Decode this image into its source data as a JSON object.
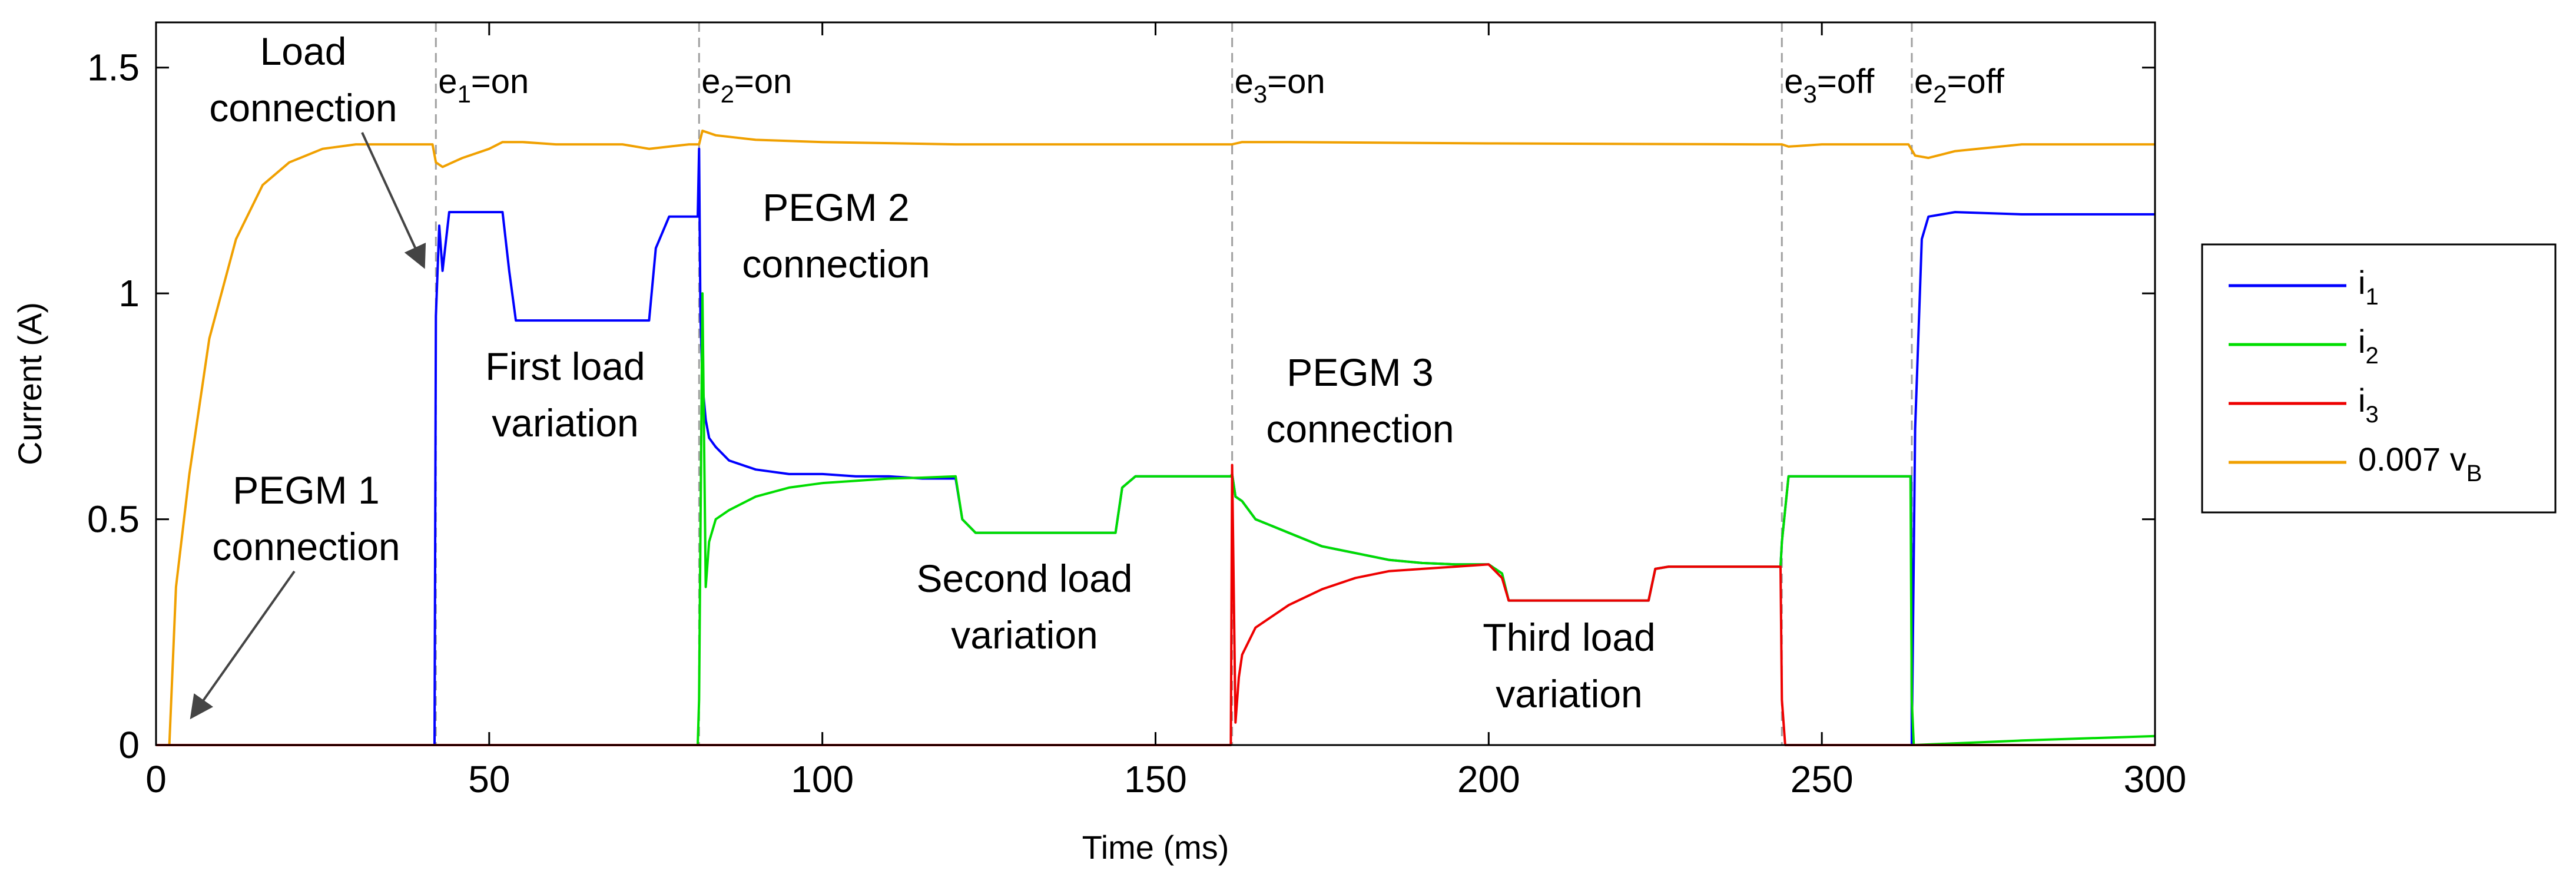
{
  "chart_data": {
    "type": "line",
    "xlabel": "Time (ms)",
    "ylabel": "Current (A)",
    "xlim": [
      0,
      300
    ],
    "ylim": [
      0,
      1.6
    ],
    "xticks": [
      0,
      50,
      100,
      150,
      200,
      250,
      300
    ],
    "xtick_labels": [
      "0",
      "50",
      "100",
      "150",
      "200",
      "250",
      "300"
    ],
    "yticks": [
      0,
      0.5,
      1,
      1.5
    ],
    "ytick_labels": [
      "0",
      "0.5",
      "1",
      "1.5"
    ],
    "legend_position": "outside-right",
    "legend": [
      {
        "main": "i",
        "sub": "1",
        "color": "#0000ff"
      },
      {
        "main": "i",
        "sub": "2",
        "color": "#00dd00"
      },
      {
        "main": "i",
        "sub": "3",
        "color": "#ee0000"
      },
      {
        "main": "0.007 v",
        "sub": "B",
        "color": "#f0a000"
      }
    ],
    "events": [
      {
        "t": 42,
        "pre": "e",
        "sub": "1",
        "post": "=on"
      },
      {
        "t": 81.5,
        "pre": "e",
        "sub": "2",
        "post": "=on"
      },
      {
        "t": 161.5,
        "pre": "e",
        "sub": "3",
        "post": "=on"
      },
      {
        "t": 244,
        "pre": "e",
        "sub": "3",
        "post": "=off"
      },
      {
        "t": 263.5,
        "pre": "e",
        "sub": "2",
        "post": "=off"
      }
    ],
    "annotations": [
      {
        "lines": [
          "Load",
          "connection"
        ]
      },
      {
        "lines": [
          "PEGM 1",
          "connection"
        ]
      },
      {
        "lines": [
          "First load",
          "variation"
        ]
      },
      {
        "lines": [
          "PEGM 2",
          "connection"
        ]
      },
      {
        "lines": [
          "Second load",
          "variation"
        ]
      },
      {
        "lines": [
          "PEGM 3",
          "connection"
        ]
      },
      {
        "lines": [
          "Third load",
          "variation"
        ]
      }
    ],
    "series": [
      {
        "name": "0.007 vB",
        "color": "#f0a000",
        "x": [
          0,
          2,
          3,
          5,
          8,
          12,
          16,
          20,
          25,
          30,
          35,
          41.5,
          42,
          43,
          46,
          50,
          52,
          55,
          60,
          70,
          74,
          77,
          80,
          81.5,
          82,
          84,
          90,
          100,
          120,
          140,
          160,
          161.5,
          163,
          170,
          200,
          240,
          244,
          245,
          250,
          263,
          264,
          266,
          270,
          280,
          300
        ],
        "y": [
          0,
          0,
          0.35,
          0.6,
          0.9,
          1.12,
          1.24,
          1.29,
          1.32,
          1.33,
          1.33,
          1.33,
          1.29,
          1.28,
          1.3,
          1.32,
          1.335,
          1.335,
          1.33,
          1.33,
          1.32,
          1.325,
          1.33,
          1.33,
          1.36,
          1.35,
          1.34,
          1.335,
          1.33,
          1.33,
          1.33,
          1.33,
          1.335,
          1.335,
          1.332,
          1.33,
          1.33,
          1.325,
          1.33,
          1.33,
          1.305,
          1.3,
          1.315,
          1.33,
          1.33
        ]
      },
      {
        "name": "i1",
        "color": "#0000ff",
        "x": [
          0,
          41.8,
          42,
          42.5,
          43,
          44,
          46,
          48,
          52,
          53,
          54,
          74,
          75,
          77,
          81.3,
          81.5,
          81.7,
          82,
          82.5,
          83,
          84,
          86,
          90,
          95,
          100,
          105,
          110,
          115,
          120,
          121,
          123,
          144,
          145,
          147,
          161.3,
          161.5,
          162,
          163,
          165,
          170,
          175,
          180,
          185,
          190,
          195,
          200,
          202,
          203,
          224,
          225,
          227,
          243.8,
          244,
          245,
          263.4,
          263.5,
          264,
          265,
          266,
          270,
          280,
          300
        ],
        "y": [
          0,
          0,
          0.95,
          1.15,
          1.05,
          1.18,
          1.18,
          1.18,
          1.18,
          1.05,
          0.94,
          0.94,
          1.1,
          1.17,
          1.17,
          1.32,
          0.95,
          0.8,
          0.72,
          0.68,
          0.66,
          0.63,
          0.61,
          0.6,
          0.6,
          0.595,
          0.595,
          0.59,
          0.59,
          0.5,
          0.47,
          0.47,
          0.57,
          0.595,
          0.595,
          0.6,
          0.55,
          0.54,
          0.5,
          0.47,
          0.44,
          0.425,
          0.41,
          0.403,
          0.4,
          0.4,
          0.38,
          0.32,
          0.32,
          0.39,
          0.395,
          0.395,
          0.45,
          0.595,
          0.595,
          0.0,
          0.7,
          1.12,
          1.17,
          1.18,
          1.175,
          1.175
        ]
      },
      {
        "name": "i2",
        "color": "#00dd00",
        "x": [
          0,
          81.3,
          81.5,
          82,
          82.5,
          83,
          84,
          86,
          90,
          95,
          100,
          105,
          110,
          115,
          120,
          121,
          123,
          144,
          145,
          147,
          161.3,
          161.5,
          162,
          163,
          165,
          170,
          175,
          180,
          185,
          190,
          195,
          200,
          202,
          203,
          224,
          225,
          227,
          243.8,
          244,
          245,
          263.3,
          263.5,
          263.8,
          280,
          300
        ],
        "y": [
          0,
          0,
          0.1,
          1.0,
          0.35,
          0.45,
          0.5,
          0.52,
          0.55,
          0.57,
          0.58,
          0.585,
          0.59,
          0.592,
          0.595,
          0.5,
          0.47,
          0.47,
          0.57,
          0.595,
          0.595,
          0.6,
          0.55,
          0.54,
          0.5,
          0.47,
          0.44,
          0.425,
          0.41,
          0.403,
          0.4,
          0.4,
          0.38,
          0.32,
          0.32,
          0.39,
          0.395,
          0.395,
          0.45,
          0.595,
          0.595,
          0.1,
          0.0,
          0.01,
          0.02
        ]
      },
      {
        "name": "i3",
        "color": "#ee0000",
        "x": [
          0,
          161.3,
          161.5,
          162,
          162.5,
          163,
          165,
          170,
          175,
          180,
          185,
          190,
          195,
          200,
          202,
          203,
          224,
          225,
          227,
          243.8,
          244,
          244.5,
          300
        ],
        "y": [
          0,
          0,
          0.62,
          0.05,
          0.15,
          0.2,
          0.26,
          0.31,
          0.345,
          0.37,
          0.385,
          0.39,
          0.395,
          0.4,
          0.37,
          0.32,
          0.32,
          0.39,
          0.395,
          0.395,
          0.1,
          0.0,
          0.0
        ]
      }
    ]
  }
}
